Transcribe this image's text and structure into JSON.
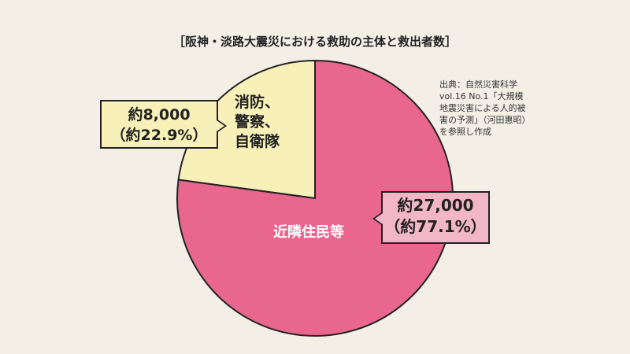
{
  "title": "［阪神・淡路大震災における救助の主体と救出者数］",
  "source_lines": [
    "出典：自然災害科学",
    "vol.16 No.1「大規模",
    "地震災害による人的被",
    "害の予測」（河田惠昭）",
    "を参照し作成"
  ],
  "chart_data": {
    "type": "pie",
    "title": "［阪神・淡路大震災における救助の主体と救出者数］",
    "slices": [
      {
        "name": "消防、警察、自衛隊",
        "name_lines": [
          "消防、",
          "警察、",
          "自衛隊"
        ],
        "value": 8000,
        "percent": 22.9,
        "value_label": "約8,000",
        "percent_label": "（約22.9%）",
        "color": "#f7f0b8"
      },
      {
        "name": "近隣住民等",
        "name_lines": [
          "近隣住民等"
        ],
        "value": 27000,
        "percent": 77.1,
        "value_label": "約27,000",
        "percent_label": "（約77.1%）",
        "color": "#e9668f"
      }
    ]
  }
}
